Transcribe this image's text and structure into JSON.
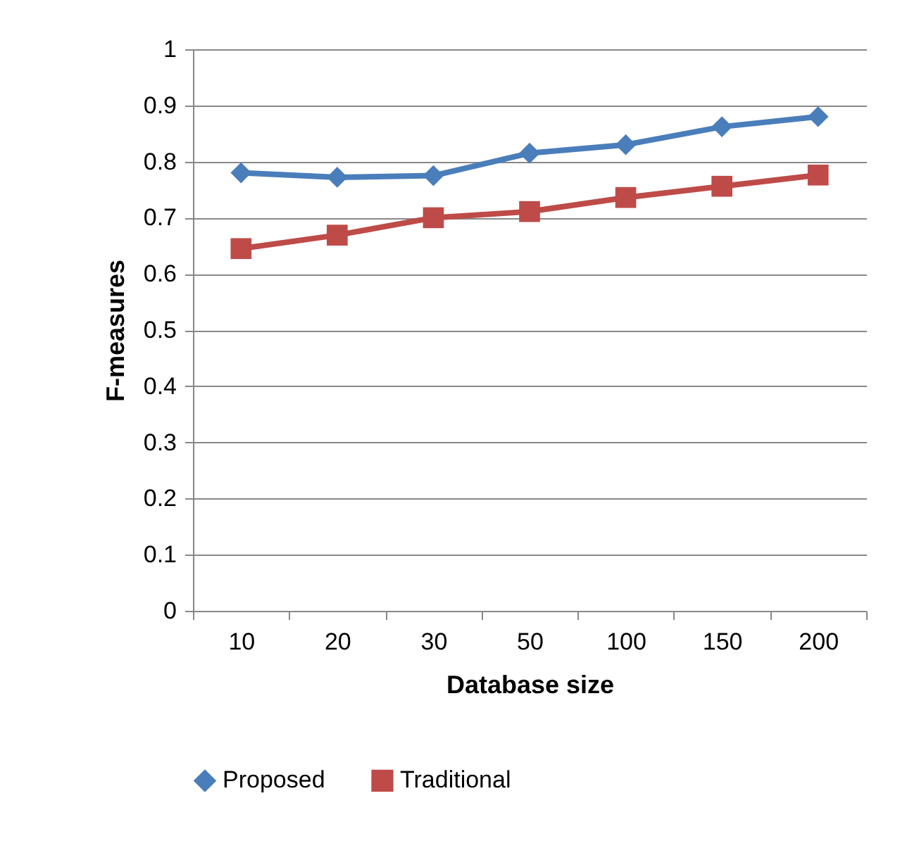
{
  "chart_data": {
    "type": "line",
    "xlabel": "Database size",
    "ylabel": "F-measures",
    "categories": [
      "10",
      "20",
      "30",
      "50",
      "100",
      "150",
      "200"
    ],
    "series": [
      {
        "name": "Proposed",
        "color": "#4a7ebb",
        "marker": "diamond",
        "values": [
          0.78,
          0.772,
          0.775,
          0.815,
          0.83,
          0.862,
          0.88
        ]
      },
      {
        "name": "Traditional",
        "color": "#be4b48",
        "marker": "square",
        "values": [
          0.645,
          0.669,
          0.7,
          0.711,
          0.736,
          0.756,
          0.776
        ]
      }
    ],
    "ylim": [
      0,
      1
    ],
    "yticks": [
      0,
      0.1,
      0.2,
      0.3,
      0.4,
      0.5,
      0.6,
      0.7,
      0.8,
      0.9,
      1
    ],
    "grid": "y",
    "legend": "bottom",
    "line_style": "solid"
  }
}
